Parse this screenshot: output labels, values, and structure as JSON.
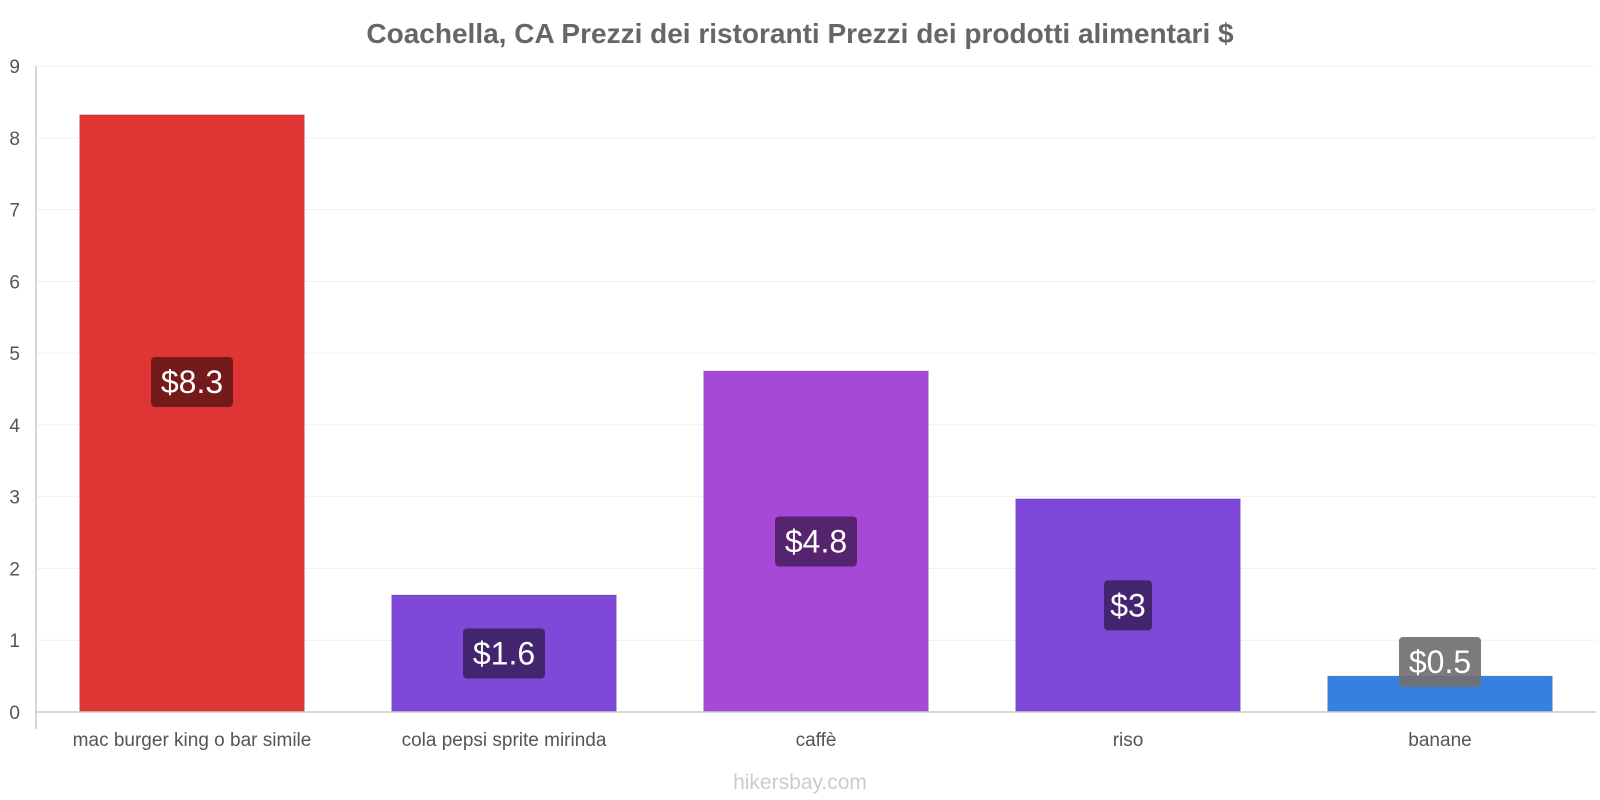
{
  "chart_data": {
    "type": "bar",
    "title": "Coachella, CA Prezzi dei ristoranti Prezzi dei prodotti alimentari $",
    "xlabel": "",
    "ylabel": "",
    "ylim": [
      0,
      9
    ],
    "yticks": [
      0,
      1,
      2,
      3,
      4,
      5,
      6,
      7,
      8,
      9
    ],
    "grid": true,
    "categories": [
      "mac burger king o bar simile",
      "cola pepsi sprite mirinda",
      "caffè",
      "riso",
      "banane"
    ],
    "values": [
      8.32,
      1.63,
      4.75,
      2.97,
      0.5
    ],
    "data_labels": [
      "$8.3",
      "$1.6",
      "$4.8",
      "$3",
      "$0.5"
    ],
    "bar_colors": [
      "#e03535",
      "#8048d8",
      "#a648d8",
      "#8048d8",
      "#3580e0"
    ],
    "label_colors": [
      "#6b1818",
      "#3d2266",
      "#4f2266",
      "#3d2266",
      "#707070"
    ]
  },
  "watermark": "hikersbay.com"
}
